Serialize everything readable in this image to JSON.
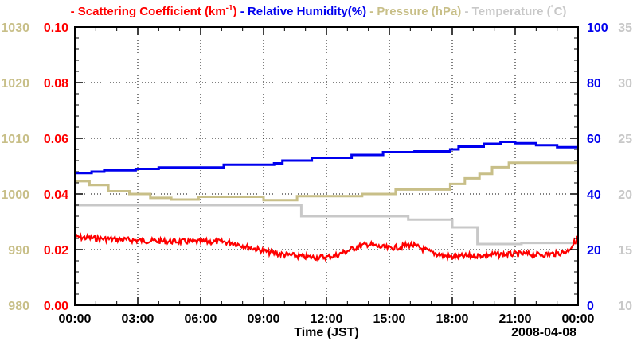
{
  "chart_data": {
    "type": "line",
    "title_parts": [
      {
        "marker": "-",
        "label": "Scattering Coefficient (km",
        "sup": "-1",
        "label_end": ")",
        "color": "#ff0000"
      },
      {
        "marker": "-",
        "label": "Relative Humidity(%)",
        "sup": "",
        "label_end": "",
        "color": "#0000ee"
      },
      {
        "marker": "-",
        "label": "Pressure (hPa)",
        "sup": "",
        "label_end": "",
        "color": "#c8bf88"
      },
      {
        "marker": "-",
        "label": "Temperature (",
        "sup": "°",
        "label_end": "C)",
        "color": "#c8c8c8"
      }
    ],
    "xlabel": "Time (JST)",
    "date_label": "2008-04-08",
    "x_ticks": [
      "00:00",
      "03:00",
      "06:00",
      "09:00",
      "12:00",
      "15:00",
      "18:00",
      "21:00",
      "00:00"
    ],
    "x_range_hours": [
      0,
      24
    ],
    "grid": true,
    "axes": {
      "pressure": {
        "ticks": [
          "980",
          "990",
          "1000",
          "1010",
          "1020",
          "1030"
        ],
        "range": [
          980,
          1030
        ],
        "color": "#c8bf88",
        "side": "left-outer"
      },
      "scattering": {
        "ticks": [
          "0.00",
          "0.02",
          "0.04",
          "0.06",
          "0.08",
          "0.10"
        ],
        "range": [
          0,
          0.1
        ],
        "color": "#ff0000",
        "side": "left-inner"
      },
      "humidity": {
        "ticks": [
          "0",
          "20",
          "40",
          "60",
          "80",
          "100"
        ],
        "range": [
          0,
          100
        ],
        "color": "#0000ee",
        "side": "right-inner"
      },
      "temperature": {
        "ticks": [
          "10",
          "15",
          "20",
          "25",
          "30",
          "35"
        ],
        "range": [
          10,
          35
        ],
        "color": "#c8c8c8",
        "side": "right-outer"
      }
    },
    "series": [
      {
        "name": "Temperature",
        "axis": "temperature",
        "color": "#c8c8c8",
        "x": [
          0,
          10.8,
          10.8,
          15.9,
          15.9,
          18.0,
          18.0,
          19.2,
          19.2,
          21.3,
          21.3,
          24.0
        ],
        "y": [
          19.0,
          19.0,
          18.0,
          18.0,
          17.7,
          17.7,
          17.0,
          17.0,
          15.5,
          15.5,
          15.6,
          15.6
        ]
      },
      {
        "name": "Pressure",
        "axis": "pressure",
        "color": "#c8bf88",
        "x": [
          0,
          0.7,
          0.7,
          1.6,
          1.6,
          2.6,
          2.6,
          3.6,
          3.6,
          4.6,
          4.6,
          5.9,
          5.9,
          9.0,
          9.0,
          10.6,
          10.6,
          13.7,
          13.7,
          15.3,
          15.3,
          17.9,
          17.9,
          18.6,
          18.6,
          19.3,
          19.3,
          19.9,
          19.9,
          20.7,
          20.7,
          24.0
        ],
        "y": [
          1002.3,
          1002.3,
          1001.6,
          1001.6,
          1000.5,
          1000.5,
          1000.0,
          1000.0,
          999.3,
          999.3,
          999.0,
          999.0,
          999.5,
          999.5,
          998.9,
          998.9,
          999.6,
          999.6,
          1000.0,
          1000.0,
          1000.8,
          1000.8,
          1001.8,
          1001.8,
          1002.8,
          1002.8,
          1003.6,
          1003.6,
          1004.8,
          1004.8,
          1005.6,
          1005.6
        ]
      },
      {
        "name": "Relative Humidity",
        "axis": "humidity",
        "color": "#0000ee",
        "x": [
          0,
          0.8,
          0.8,
          1.4,
          1.4,
          2.9,
          2.9,
          4.0,
          4.0,
          7.1,
          7.1,
          9.5,
          9.5,
          9.9,
          9.9,
          11.3,
          11.3,
          13.2,
          13.2,
          14.7,
          14.7,
          16.2,
          16.2,
          17.9,
          17.9,
          18.3,
          18.3,
          19.5,
          19.5,
          20.3,
          20.3,
          21.0,
          21.0,
          22.0,
          22.0,
          23.0,
          23.0,
          24.0
        ],
        "y": [
          47.5,
          47.5,
          48.0,
          48.0,
          48.5,
          48.5,
          49.0,
          49.0,
          49.5,
          49.5,
          50.5,
          50.5,
          51.0,
          51.0,
          52.0,
          52.0,
          53.0,
          53.0,
          54.0,
          54.0,
          55.0,
          55.0,
          55.3,
          55.3,
          56.0,
          56.0,
          57.0,
          57.0,
          58.0,
          58.0,
          58.7,
          58.7,
          58.2,
          58.2,
          57.5,
          57.5,
          56.8,
          56.8
        ]
      },
      {
        "name": "Scattering Coefficient",
        "axis": "scattering",
        "color": "#ff0000",
        "x": [
          0,
          1,
          2,
          3,
          4,
          5,
          6,
          7,
          7.5,
          8,
          8.5,
          9,
          9.5,
          10,
          10.5,
          11,
          11.5,
          12,
          12.5,
          13,
          13.5,
          14,
          14.5,
          15,
          15.5,
          16,
          16.5,
          17,
          17.5,
          18,
          18.5,
          19,
          19.5,
          20,
          20.5,
          21,
          21.5,
          22,
          22.5,
          23,
          23.5,
          24
        ],
        "y": [
          0.0245,
          0.024,
          0.0237,
          0.0233,
          0.023,
          0.0229,
          0.0228,
          0.0228,
          0.0225,
          0.0215,
          0.0205,
          0.0195,
          0.0187,
          0.0182,
          0.0178,
          0.0174,
          0.0172,
          0.0173,
          0.018,
          0.0195,
          0.021,
          0.022,
          0.021,
          0.0205,
          0.021,
          0.0218,
          0.0205,
          0.019,
          0.018,
          0.0173,
          0.0176,
          0.0178,
          0.018,
          0.0182,
          0.0183,
          0.0184,
          0.0184,
          0.0182,
          0.0183,
          0.0186,
          0.0195,
          0.024
        ]
      }
    ]
  }
}
